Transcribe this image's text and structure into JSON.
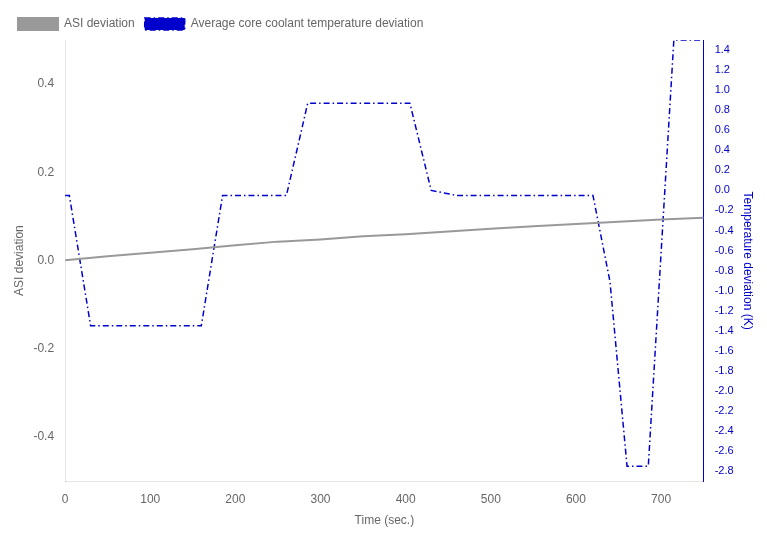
{
  "chart_data": {
    "type": "line",
    "xlabel": "Time (sec.)",
    "ylabel": "ASI deviation",
    "y2label": "Temperature deviation (K)",
    "series": [
      {
        "name": "ASI deviation",
        "color": "#999999",
        "line_style": "solid",
        "x": [
          0,
          50,
          100,
          150,
          200,
          250,
          300,
          350,
          400,
          450,
          500,
          550,
          600,
          650,
          700,
          750
        ],
        "values": [
          0.001,
          0.01,
          0.018,
          0.026,
          0.035,
          0.043,
          0.048,
          0.055,
          0.06,
          0.066,
          0.072,
          0.078,
          0.083,
          0.088,
          0.093,
          0.097
        ]
      },
      {
        "name": "Average core coolant temperature deviation",
        "color": "#0000cc",
        "line_style": "dashdot",
        "axis": "y2",
        "x": [
          0,
          5,
          30,
          80,
          120,
          160,
          185,
          220,
          260,
          285,
          320,
          355,
          405,
          430,
          460,
          480,
          500,
          550,
          595,
          620,
          640,
          660,
          685,
          715,
          750
        ],
        "values": [
          -0.05,
          -0.05,
          -1.35,
          -1.35,
          -1.35,
          -1.35,
          -0.05,
          -0.05,
          -0.05,
          0.87,
          0.87,
          0.87,
          0.87,
          0.0,
          -0.05,
          -0.05,
          -0.05,
          -0.05,
          -0.05,
          -0.05,
          -0.91,
          -2.75,
          -2.75,
          1.5,
          1.5
        ]
      }
    ],
    "xlim": [
      0,
      750
    ],
    "xticks": [
      0,
      100,
      200,
      300,
      400,
      500,
      600,
      700
    ],
    "ylim": [
      -0.5,
      0.5
    ],
    "yticks": [
      -0.4,
      -0.2,
      {
        "value": 0,
        "label": "0.0"
      },
      0.2,
      0.4
    ],
    "y2lim": [
      -2.9,
      1.5
    ],
    "y2ticks": [
      -2.8,
      -2.6,
      -2.4,
      -2.2,
      {
        "value": -2,
        "label": "-2.0"
      },
      -1.8,
      -1.6,
      -1.4,
      -1.2,
      {
        "value": -1,
        "label": "-1.0"
      },
      -0.8,
      -0.6,
      -0.4,
      -0.2,
      {
        "value": 0,
        "label": "0.0"
      },
      0.2,
      0.4,
      0.6,
      0.8,
      {
        "value": 1,
        "label": "1.0"
      },
      1.2,
      1.4
    ],
    "grid": false,
    "legend": "upper left"
  }
}
